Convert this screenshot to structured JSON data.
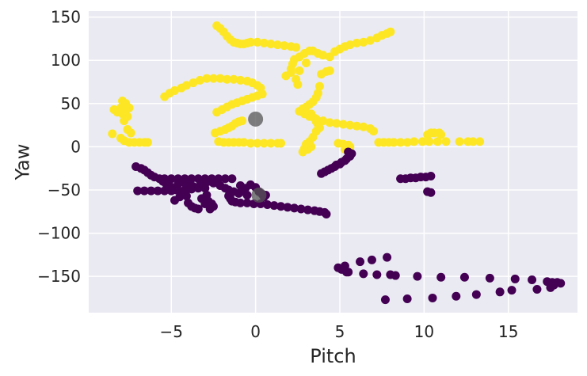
{
  "chart_data": {
    "type": "scatter",
    "title": "",
    "xlabel": "Pitch",
    "ylabel": "Yaw",
    "xlim": [
      -9.9,
      19.1
    ],
    "ylim": [
      -192,
      157
    ],
    "x_ticks": [
      -5,
      0,
      5,
      10,
      15
    ],
    "x_tick_labels": [
      "−5",
      "0",
      "5",
      "10",
      "15"
    ],
    "y_ticks": [
      -150,
      -100,
      -50,
      0,
      50,
      100,
      150
    ],
    "y_tick_labels": [
      "−150",
      "−100",
      "−50",
      "0",
      "50",
      "100",
      "150"
    ],
    "grid": true,
    "legend": "none",
    "colors": {
      "background": "#eaeaf2",
      "grid": "#ffffff",
      "yellow": "#fde725",
      "purple": "#440154",
      "centroid": "#555555"
    },
    "series": [
      {
        "color": "yellow",
        "points": [
          [
            -2.3,
            140
          ],
          [
            -2.1,
            137
          ],
          [
            -1.9,
            133
          ],
          [
            -1.7,
            128
          ],
          [
            -1.5,
            124
          ],
          [
            -1.3,
            121
          ],
          [
            -1.1,
            120
          ],
          [
            -0.9,
            119
          ],
          [
            -0.7,
            119
          ],
          [
            -0.5,
            120
          ],
          [
            -0.3,
            121
          ],
          [
            0.1,
            121
          ],
          [
            0.5,
            120
          ],
          [
            0.9,
            119
          ],
          [
            1.3,
            118
          ],
          [
            1.7,
            117
          ],
          [
            2.1,
            116
          ],
          [
            2.4,
            115
          ],
          [
            -5.4,
            58
          ],
          [
            -5.1,
            62
          ],
          [
            -4.8,
            65
          ],
          [
            -4.4,
            68
          ],
          [
            -4.1,
            71
          ],
          [
            -3.7,
            74
          ],
          [
            -3.3,
            77
          ],
          [
            -2.9,
            79
          ],
          [
            -2.5,
            79
          ],
          [
            -2.1,
            79
          ],
          [
            -1.7,
            78
          ],
          [
            -1.3,
            78
          ],
          [
            -0.9,
            77
          ],
          [
            -0.5,
            76
          ],
          [
            -0.2,
            74
          ],
          [
            0.1,
            71
          ],
          [
            0.3,
            68
          ],
          [
            -2.3,
            40
          ],
          [
            -2.0,
            43
          ],
          [
            -1.7,
            46
          ],
          [
            -1.4,
            49
          ],
          [
            -1.1,
            51
          ],
          [
            -0.8,
            53
          ],
          [
            -0.5,
            55
          ],
          [
            -0.2,
            57
          ],
          [
            0.1,
            59
          ],
          [
            0.4,
            61
          ],
          [
            -2.4,
            16
          ],
          [
            -2.1,
            18
          ],
          [
            -1.8,
            20
          ],
          [
            -1.6,
            22
          ],
          [
            -1.4,
            24
          ],
          [
            -1.2,
            27
          ],
          [
            -1.0,
            29
          ],
          [
            -0.8,
            30
          ],
          [
            -2.2,
            6
          ],
          [
            -1.9,
            5
          ],
          [
            -1.6,
            5
          ],
          [
            -1.3,
            5
          ],
          [
            -1.0,
            5
          ],
          [
            -0.7,
            5
          ],
          [
            -0.3,
            4
          ],
          [
            0.1,
            4
          ],
          [
            0.5,
            4
          ],
          [
            0.9,
            4
          ],
          [
            1.3,
            4
          ],
          [
            1.5,
            4
          ],
          [
            -8.5,
            15
          ],
          [
            -8.0,
            10
          ],
          [
            -7.8,
            7
          ],
          [
            -7.5,
            5
          ],
          [
            -7.2,
            5
          ],
          [
            -6.9,
            5
          ],
          [
            -6.6,
            5
          ],
          [
            -6.4,
            5
          ],
          [
            -7.6,
            20
          ],
          [
            -7.4,
            16
          ],
          [
            -7.8,
            30
          ],
          [
            -7.6,
            35
          ],
          [
            -8.2,
            40
          ],
          [
            -8.0,
            45
          ],
          [
            -7.8,
            48
          ],
          [
            -7.9,
            53
          ],
          [
            -7.7,
            50
          ],
          [
            -7.5,
            45
          ],
          [
            -7.7,
            42
          ],
          [
            -8.4,
            43
          ],
          [
            -7.9,
            38
          ],
          [
            1.8,
            82
          ],
          [
            2.1,
            90
          ],
          [
            2.2,
            96
          ],
          [
            2.3,
            101
          ],
          [
            2.6,
            104
          ],
          [
            2.9,
            108
          ],
          [
            3.2,
            111
          ],
          [
            3.4,
            111
          ],
          [
            3.7,
            108
          ],
          [
            4.0,
            106
          ],
          [
            4.4,
            104
          ],
          [
            2.1,
            86
          ],
          [
            2.4,
            78
          ],
          [
            2.5,
            72
          ],
          [
            2.6,
            88
          ],
          [
            3.0,
            97
          ],
          [
            3.9,
            84
          ],
          [
            4.2,
            87
          ],
          [
            4.4,
            88
          ],
          [
            3.8,
            70
          ],
          [
            3.7,
            62
          ],
          [
            3.6,
            57
          ],
          [
            3.4,
            52
          ],
          [
            3.2,
            49
          ],
          [
            3.0,
            46
          ],
          [
            2.8,
            44
          ],
          [
            2.6,
            41
          ],
          [
            2.9,
            38
          ],
          [
            3.2,
            35
          ],
          [
            3.6,
            32
          ],
          [
            4.0,
            30
          ],
          [
            4.4,
            28
          ],
          [
            4.8,
            27
          ],
          [
            5.2,
            26
          ],
          [
            5.6,
            25
          ],
          [
            6.0,
            24
          ],
          [
            6.4,
            23
          ],
          [
            6.8,
            21
          ],
          [
            7.0,
            18
          ],
          [
            4.7,
            110
          ],
          [
            5.0,
            113
          ],
          [
            5.3,
            116
          ],
          [
            5.6,
            118
          ],
          [
            6.0,
            120
          ],
          [
            6.4,
            121
          ],
          [
            6.8,
            123
          ],
          [
            7.2,
            126
          ],
          [
            7.5,
            129
          ],
          [
            7.8,
            131
          ],
          [
            8.0,
            133
          ],
          [
            3.3,
            38
          ],
          [
            3.5,
            33
          ],
          [
            3.6,
            29
          ],
          [
            3.7,
            26
          ],
          [
            3.8,
            22
          ],
          [
            3.6,
            18
          ],
          [
            3.4,
            11
          ],
          [
            3.2,
            6
          ],
          [
            3.0,
            3
          ],
          [
            2.9,
            -2
          ],
          [
            2.8,
            -6
          ],
          [
            3.1,
            -3
          ],
          [
            3.3,
            0
          ],
          [
            4.9,
            4
          ],
          [
            5.2,
            3
          ],
          [
            5.5,
            2
          ],
          [
            5.6,
            0
          ],
          [
            5.3,
            -3
          ],
          [
            7.3,
            5
          ],
          [
            7.6,
            5
          ],
          [
            7.9,
            5
          ],
          [
            8.2,
            5
          ],
          [
            8.6,
            5
          ],
          [
            9.0,
            5
          ],
          [
            9.4,
            6
          ],
          [
            9.9,
            6
          ],
          [
            10.3,
            6
          ],
          [
            10.8,
            6
          ],
          [
            11.3,
            6
          ],
          [
            12.1,
            6
          ],
          [
            12.6,
            6
          ],
          [
            12.9,
            6
          ],
          [
            13.3,
            6
          ],
          [
            10.2,
            14
          ],
          [
            10.4,
            16
          ],
          [
            10.6,
            16
          ],
          [
            10.9,
            16
          ],
          [
            11.0,
            14
          ]
        ]
      },
      {
        "color": "purple",
        "points": [
          [
            -7.1,
            -23
          ],
          [
            -6.8,
            -25
          ],
          [
            -6.6,
            -27
          ],
          [
            -6.4,
            -30
          ],
          [
            -6.2,
            -33
          ],
          [
            -6.0,
            -35
          ],
          [
            -5.7,
            -37
          ],
          [
            -5.4,
            -37
          ],
          [
            -5.0,
            -37
          ],
          [
            -4.6,
            -37
          ],
          [
            -4.2,
            -37
          ],
          [
            -3.8,
            -37
          ],
          [
            -3.4,
            -37
          ],
          [
            -3.0,
            -37
          ],
          [
            -2.6,
            -37
          ],
          [
            -2.2,
            -37
          ],
          [
            -1.8,
            -37
          ],
          [
            -1.4,
            -37
          ],
          [
            -7.0,
            -51
          ],
          [
            -6.6,
            -51
          ],
          [
            -6.2,
            -51
          ],
          [
            -5.8,
            -51
          ],
          [
            -5.4,
            -51
          ],
          [
            -5.0,
            -51
          ],
          [
            -4.6,
            -50
          ],
          [
            -4.2,
            -50
          ],
          [
            -3.8,
            -49
          ],
          [
            -3.4,
            -48
          ],
          [
            -3.0,
            -48
          ],
          [
            -5.5,
            -40
          ],
          [
            -5.3,
            -43
          ],
          [
            -5.1,
            -45
          ],
          [
            -4.9,
            -48
          ],
          [
            -4.7,
            -50
          ],
          [
            -4.5,
            -52
          ],
          [
            -4.3,
            -55
          ],
          [
            -4.1,
            -57
          ],
          [
            -4.8,
            -62
          ],
          [
            -4.5,
            -58
          ],
          [
            -4.2,
            -52
          ],
          [
            -4.6,
            -43
          ],
          [
            -4.4,
            -40
          ],
          [
            -4.2,
            -42
          ],
          [
            -4.0,
            -45
          ],
          [
            -3.7,
            -46
          ],
          [
            -4.0,
            -65
          ],
          [
            -3.8,
            -69
          ],
          [
            -3.6,
            -71
          ],
          [
            -3.4,
            -72
          ],
          [
            -3.0,
            -66
          ],
          [
            -2.8,
            -63
          ],
          [
            -2.6,
            -66
          ],
          [
            -2.5,
            -69
          ],
          [
            -2.7,
            -72
          ],
          [
            -3.2,
            -60
          ],
          [
            -2.9,
            -56
          ],
          [
            -3.3,
            -45
          ],
          [
            -3.0,
            -43
          ],
          [
            -2.7,
            -40
          ],
          [
            -2.5,
            -42
          ],
          [
            -1.6,
            -57
          ],
          [
            -1.5,
            -60
          ],
          [
            -1.4,
            -63
          ],
          [
            -1.2,
            -64
          ],
          [
            -0.9,
            -65
          ],
          [
            -0.5,
            -65
          ],
          [
            -0.1,
            -66
          ],
          [
            0.3,
            -66
          ],
          [
            0.7,
            -67
          ],
          [
            1.1,
            -68
          ],
          [
            1.5,
            -69
          ],
          [
            1.9,
            -70
          ],
          [
            2.3,
            -71
          ],
          [
            2.7,
            -72
          ],
          [
            3.1,
            -73
          ],
          [
            3.5,
            -74
          ],
          [
            3.8,
            -75
          ],
          [
            4.1,
            -76
          ],
          [
            4.2,
            -78
          ],
          [
            -2.1,
            -45
          ],
          [
            -1.8,
            -48
          ],
          [
            -1.6,
            -50
          ],
          [
            -1.3,
            -52
          ],
          [
            -1.0,
            -54
          ],
          [
            -0.7,
            -52
          ],
          [
            -0.6,
            -48
          ],
          [
            -0.9,
            -45
          ],
          [
            -0.3,
            -44
          ],
          [
            0.0,
            -47
          ],
          [
            0.2,
            -52
          ],
          [
            0.4,
            -55
          ],
          [
            0.5,
            -58
          ],
          [
            0.6,
            -56
          ],
          [
            -0.5,
            -56
          ],
          [
            3.9,
            -31
          ],
          [
            4.1,
            -29
          ],
          [
            4.3,
            -27
          ],
          [
            4.5,
            -25
          ],
          [
            4.7,
            -23
          ],
          [
            4.8,
            -21
          ],
          [
            5.0,
            -20
          ],
          [
            5.1,
            -18
          ],
          [
            5.3,
            -16
          ],
          [
            5.4,
            -14
          ],
          [
            5.6,
            -11
          ],
          [
            5.7,
            -8
          ],
          [
            5.5,
            -6
          ],
          [
            8.6,
            -37
          ],
          [
            8.9,
            -37
          ],
          [
            9.2,
            -36
          ],
          [
            9.5,
            -36
          ],
          [
            9.8,
            -35
          ],
          [
            10.1,
            -35
          ],
          [
            10.4,
            -34
          ],
          [
            10.2,
            -52
          ],
          [
            10.4,
            -53
          ],
          [
            4.9,
            -140
          ],
          [
            5.1,
            -142
          ],
          [
            5.3,
            -138
          ],
          [
            5.4,
            -145
          ],
          [
            5.5,
            -145
          ],
          [
            6.2,
            -133
          ],
          [
            6.9,
            -131
          ],
          [
            7.8,
            -128
          ],
          [
            6.4,
            -147
          ],
          [
            7.2,
            -148
          ],
          [
            8.0,
            -148
          ],
          [
            8.3,
            -149
          ],
          [
            9.6,
            -150
          ],
          [
            11.0,
            -151
          ],
          [
            12.4,
            -151
          ],
          [
            13.9,
            -152
          ],
          [
            15.4,
            -153
          ],
          [
            16.4,
            -154
          ],
          [
            17.3,
            -156
          ],
          [
            17.6,
            -157
          ],
          [
            17.9,
            -157
          ],
          [
            18.1,
            -158
          ],
          [
            17.7,
            -160
          ],
          [
            17.5,
            -163
          ],
          [
            16.7,
            -165
          ],
          [
            15.2,
            -166
          ],
          [
            14.5,
            -168
          ],
          [
            13.1,
            -171
          ],
          [
            11.9,
            -173
          ],
          [
            10.5,
            -175
          ],
          [
            9.0,
            -176
          ],
          [
            7.7,
            -177
          ]
        ]
      },
      {
        "color": "centroid",
        "points": [
          [
            0.0,
            32
          ],
          [
            0.2,
            -56
          ]
        ]
      }
    ]
  }
}
